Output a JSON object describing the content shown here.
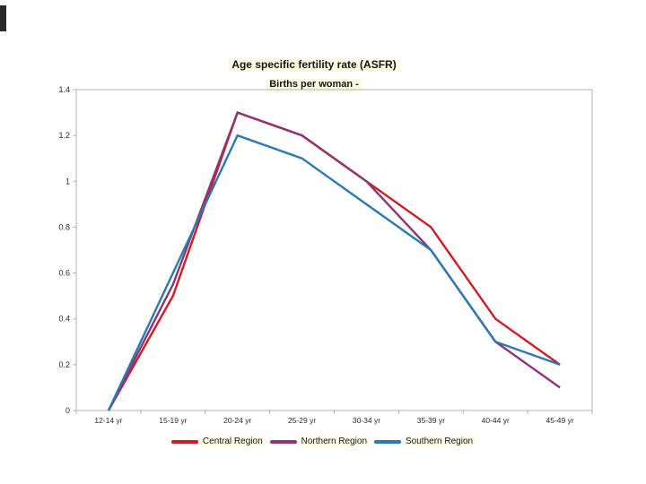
{
  "chart_data": {
    "type": "line",
    "title": "Age specific fertility rate (ASFR)",
    "subtitle": "Births per woman -",
    "categories": [
      "12-14 yr",
      "15-19 yr",
      "20-24 yr",
      "25-29 yr",
      "30-34 yr",
      "35-39 yr",
      "40-44 yr",
      "45-49 yr"
    ],
    "series": [
      {
        "name": "Central Region",
        "color": "#cf1d24",
        "values": [
          0,
          0.5,
          1.3,
          1.2,
          1.0,
          0.8,
          0.4,
          0.2
        ]
      },
      {
        "name": "Northern Region",
        "color": "#8e3572",
        "values": [
          0,
          0.55,
          1.3,
          1.2,
          1.0,
          0.7,
          0.3,
          0.1
        ]
      },
      {
        "name": "Southern Region",
        "color": "#2979b5",
        "values": [
          0,
          0.6,
          1.2,
          1.1,
          0.9,
          0.7,
          0.3,
          0.2
        ]
      }
    ],
    "ylim": [
      0,
      1.4
    ],
    "ytick_labels": [
      "0",
      "0.2",
      "0.4",
      "0.6",
      "0.8",
      "1",
      "1.2",
      "1.4"
    ],
    "grid": false,
    "legend_position": "bottom",
    "axis_color": "#b3b3b3"
  }
}
